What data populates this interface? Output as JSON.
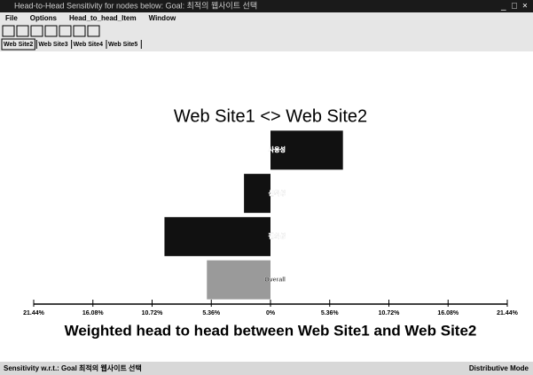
{
  "window": {
    "title": "Head-to-Head Sensitivity for nodes below: Goal: 최적의 웹사이트 선택",
    "menu": [
      "File",
      "Options",
      "Head_to_head_Item",
      "Window"
    ],
    "tabs": [
      "Web Site2",
      "Web Site3",
      "Web Site4",
      "Web Site5"
    ]
  },
  "chart_data": {
    "type": "hbar",
    "title": "Web Site1 <> Web Site2",
    "xlabel": "Weighted head to head between Web Site1 and Web Site2",
    "categories": [
      "사용성",
      "신뢰성",
      "편의성",
      "Overall"
    ],
    "values": [
      6.56,
      -2.4,
      -9.6,
      -5.76
    ],
    "colors": [
      "#111111",
      "#111111",
      "#111111",
      "#9a9a9a"
    ],
    "xlim": [
      -21.44,
      21.44
    ],
    "xticks": [
      {
        "value": -21.44,
        "label": "21.44%"
      },
      {
        "value": -16.08,
        "label": "16.08%"
      },
      {
        "value": -10.72,
        "label": "10.72%"
      },
      {
        "value": -5.36,
        "label": "5.36%"
      },
      {
        "value": 0,
        "label": "0%"
      },
      {
        "value": 5.36,
        "label": "5.36%"
      },
      {
        "value": 10.72,
        "label": "10.72%"
      },
      {
        "value": 16.08,
        "label": "16.08%"
      },
      {
        "value": 21.44,
        "label": "21.44%"
      }
    ]
  },
  "status": {
    "left": "Sensitivity w.r.t.: Goal 최적의 웹사이트 선택",
    "right": "Distributive Mode"
  }
}
